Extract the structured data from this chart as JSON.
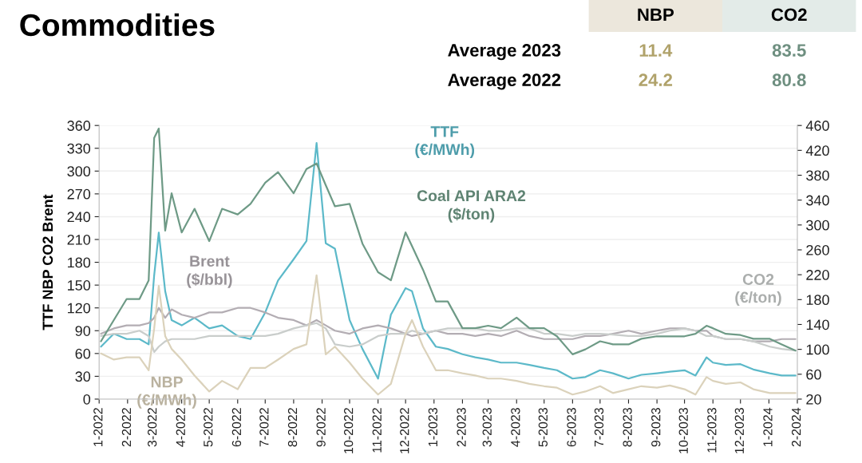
{
  "chart_data": [
    {
      "type": "line",
      "title": "Commodities",
      "ylabel": "TTF NBP CO2 Brent",
      "x": [
        "2022-01-03",
        "2022-01-17",
        "2022-01-31",
        "2022-02-14",
        "2022-02-24",
        "2022-03-02",
        "2022-03-07",
        "2022-03-14",
        "2022-03-21",
        "2022-04-01",
        "2022-04-15",
        "2022-05-01",
        "2022-05-15",
        "2022-06-01",
        "2022-06-15",
        "2022-07-01",
        "2022-07-15",
        "2022-08-01",
        "2022-08-15",
        "2022-08-26",
        "2022-09-05",
        "2022-09-15",
        "2022-10-01",
        "2022-10-15",
        "2022-11-01",
        "2022-11-15",
        "2022-12-01",
        "2022-12-08",
        "2022-12-20",
        "2023-01-03",
        "2023-01-16",
        "2023-02-01",
        "2023-02-15",
        "2023-03-01",
        "2023-03-15",
        "2023-04-01",
        "2023-04-15",
        "2023-05-01",
        "2023-05-15",
        "2023-06-01",
        "2023-06-15",
        "2023-07-01",
        "2023-07-15",
        "2023-08-01",
        "2023-08-15",
        "2023-09-01",
        "2023-09-15",
        "2023-10-01",
        "2023-10-13",
        "2023-10-25",
        "2023-11-01",
        "2023-11-15",
        "2023-12-01",
        "2023-12-15",
        "2024-01-02",
        "2024-01-15",
        "2024-01-30"
      ],
      "series": [
        {
          "color": "#5cb9c9",
          "values": [
            69,
            86,
            79,
            79,
            72,
            163,
            219,
            142,
            104,
            97,
            107,
            93,
            97,
            83,
            79,
            114,
            156,
            184,
            208,
            337,
            205,
            198,
            104,
            66,
            27,
            111,
            146,
            142,
            93,
            69,
            66,
            59,
            55,
            52,
            48,
            48,
            45,
            41,
            38,
            27,
            29,
            38,
            34,
            27,
            32,
            34,
            36,
            38,
            31,
            55,
            48,
            45,
            46,
            39,
            34,
            31,
            31
          ]
        },
        {
          "color": "#6e9a86",
          "axis": "y2",
          "values": [
            113,
            147,
            181,
            181,
            211,
            440,
            455,
            291,
            351,
            288,
            326,
            274,
            326,
            317,
            334,
            368,
            385,
            351,
            390,
            399,
            364,
            330,
            334,
            270,
            224,
            211,
            288,
            266,
            228,
            177,
            177,
            134,
            134,
            138,
            134,
            151,
            134,
            134,
            121,
            92,
            100,
            113,
            108,
            108,
            117,
            121,
            121,
            121,
            125,
            138,
            134,
            125,
            123,
            117,
            117,
            108,
            98
          ]
        },
        {
          "color": "#b3adb3",
          "values": [
            86,
            93,
            97,
            97,
            100,
            107,
            120,
            107,
            118,
            111,
            107,
            114,
            114,
            120,
            120,
            114,
            107,
            104,
            97,
            104,
            97,
            90,
            86,
            93,
            97,
            93,
            86,
            83,
            86,
            90,
            86,
            86,
            83,
            86,
            83,
            90,
            83,
            79,
            79,
            79,
            83,
            83,
            86,
            90,
            86,
            90,
            93,
            93,
            90,
            90,
            83,
            79,
            79,
            76,
            76,
            79,
            79
          ]
        },
        {
          "color": "#c9cdcb",
          "values": [
            83,
            86,
            86,
            90,
            83,
            62,
            69,
            76,
            79,
            79,
            79,
            83,
            83,
            83,
            83,
            83,
            86,
            93,
            97,
            100,
            93,
            72,
            69,
            72,
            83,
            86,
            86,
            90,
            86,
            90,
            93,
            93,
            93,
            90,
            90,
            93,
            93,
            86,
            86,
            83,
            86,
            86,
            85,
            83,
            83,
            86,
            90,
            93,
            90,
            83,
            83,
            79,
            79,
            76,
            69,
            66,
            64
          ]
        },
        {
          "color": "#dbd2bb",
          "values": [
            60,
            52,
            55,
            55,
            38,
            93,
            149,
            83,
            66,
            52,
            31,
            10,
            24,
            13,
            41,
            41,
            52,
            66,
            72,
            163,
            59,
            69,
            48,
            27,
            6,
            20,
            86,
            104,
            69,
            38,
            38,
            34,
            31,
            27,
            27,
            24,
            20,
            17,
            15,
            6,
            10,
            17,
            8,
            13,
            17,
            15,
            18,
            13,
            6,
            29,
            24,
            20,
            22,
            13,
            8,
            8,
            8
          ]
        }
      ],
      "annotations": [
        "TTF\n(€/MWh)",
        "Coal API ARA2\n($/ton)",
        "Brent\n($/bbl)",
        "CO2\n(€/ton)",
        "NBP\n(€/MWh)"
      ],
      "xlim": [
        "2022-01-01",
        "2024-02-01"
      ],
      "xticks": [
        {
          "value": "2022-01-01",
          "label": "1-2022"
        },
        {
          "value": "2022-02-01",
          "label": "2-2022"
        },
        {
          "value": "2022-03-01",
          "label": "3-2022"
        },
        {
          "value": "2022-04-01",
          "label": "4-2022"
        },
        {
          "value": "2022-05-01",
          "label": "5-2022"
        },
        {
          "value": "2022-06-01",
          "label": "6-2022"
        },
        {
          "value": "2022-07-01",
          "label": "7-2022"
        },
        {
          "value": "2022-08-01",
          "label": "8-2022"
        },
        {
          "value": "2022-09-01",
          "label": "9-2022"
        },
        {
          "value": "2022-10-01",
          "label": "10-2022"
        },
        {
          "value": "2022-11-01",
          "label": "11-2022"
        },
        {
          "value": "2022-12-01",
          "label": "12-2022"
        },
        {
          "value": "2023-01-01",
          "label": "1-2023"
        },
        {
          "value": "2023-02-01",
          "label": "2-2023"
        },
        {
          "value": "2023-03-01",
          "label": "3-2023"
        },
        {
          "value": "2023-04-01",
          "label": "4-2023"
        },
        {
          "value": "2023-05-01",
          "label": "5-2023"
        },
        {
          "value": "2023-06-01",
          "label": "6-2023"
        },
        {
          "value": "2023-07-01",
          "label": "7-2023"
        },
        {
          "value": "2023-08-01",
          "label": "8-2023"
        },
        {
          "value": "2023-09-01",
          "label": "9-2023"
        },
        {
          "value": "2023-10-01",
          "label": "10-2023"
        },
        {
          "value": "2023-11-01",
          "label": "11-2023"
        },
        {
          "value": "2023-12-01",
          "label": "12-2023"
        },
        {
          "value": "2024-01-01",
          "label": "1-2024"
        },
        {
          "value": "2024-02-01",
          "label": "2-2024"
        }
      ],
      "ylim": [
        0,
        360
      ],
      "yticks": [
        0,
        30,
        60,
        90,
        120,
        150,
        180,
        210,
        240,
        270,
        300,
        330,
        360
      ],
      "y2lim": [
        20,
        460
      ],
      "y2ticks": [
        20,
        60,
        100,
        140,
        180,
        220,
        260,
        300,
        340,
        380,
        420,
        460
      ],
      "grid": "y",
      "legend": false,
      "marker": "none",
      "line_style": "solid"
    },
    {
      "type": "other",
      "categories": [
        "Average 2023",
        "Average 2022"
      ],
      "data_labels": true,
      "series": [
        {
          "name": "NBP",
          "values": [
            11.4,
            24.2
          ]
        },
        {
          "name": "CO2",
          "values": [
            83.5,
            80.8
          ]
        }
      ]
    }
  ]
}
